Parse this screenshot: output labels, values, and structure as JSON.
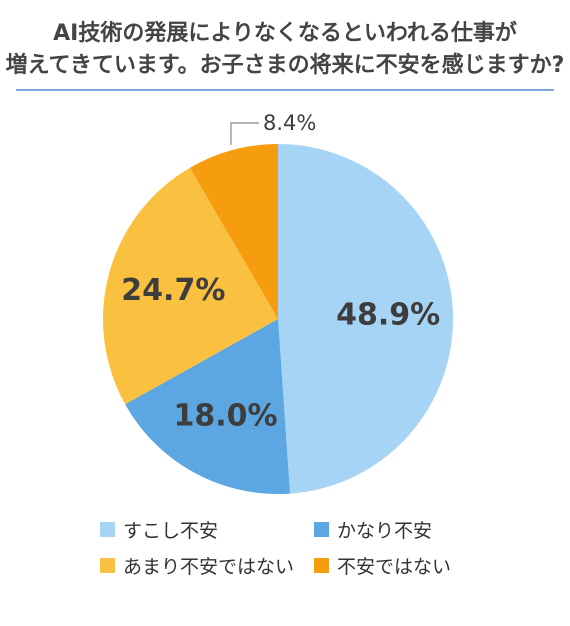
{
  "title": {
    "line1": "AI技術の発展によりなくなるといわれる仕事が",
    "line2": "増えてきています。お子さまの将来に不安を感じますか?"
  },
  "chart_data": {
    "type": "pie",
    "start_angle_deg": 0,
    "direction": "clockwise",
    "categories": [
      "すこし不安",
      "かなり不安",
      "あまり不安ではない",
      "不安ではない"
    ],
    "values": [
      48.9,
      18.0,
      24.7,
      8.4
    ],
    "labels": [
      "48.9%",
      "18.0%",
      "24.7%",
      "8.4%"
    ],
    "colors": [
      "#a6d4f4",
      "#5ca6e1",
      "#f9c13f",
      "#f59d0f"
    ],
    "legend_position": "bottom",
    "title": "AI技術の発展によりなくなるといわれる仕事が増えてきています。お子さまの将来に不安を感じますか?"
  }
}
